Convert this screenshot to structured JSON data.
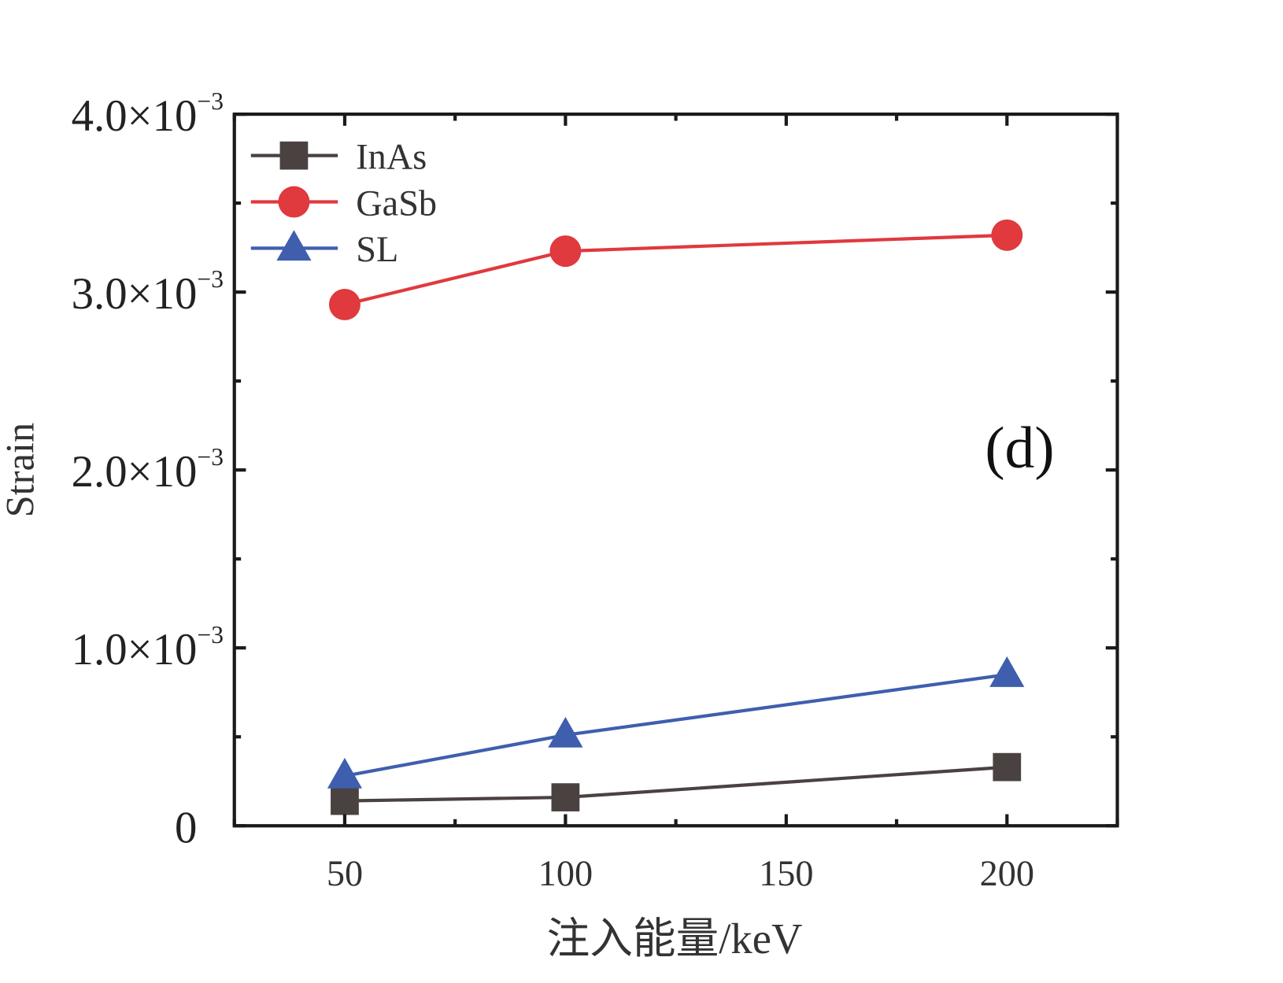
{
  "chart_data": {
    "type": "line",
    "title": "",
    "panel_label": "(d)",
    "xlabel": "注入能量/keV",
    "ylabel": "Strain",
    "xlim": [
      25,
      225
    ],
    "ylim": [
      0,
      0.004
    ],
    "x_ticks": [
      50,
      100,
      150,
      200
    ],
    "x_tick_labels": [
      "50",
      "100",
      "150",
      "200"
    ],
    "y_ticks": [
      0,
      0.001,
      0.002,
      0.003,
      0.004
    ],
    "y_tick_labels": [
      {
        "mantissa": "0",
        "exp": ""
      },
      {
        "mantissa": "1.0×10",
        "exp": "−3"
      },
      {
        "mantissa": "2.0×10",
        "exp": "−3"
      },
      {
        "mantissa": "3.0×10",
        "exp": "−3"
      },
      {
        "mantissa": "4.0×10",
        "exp": "−3"
      }
    ],
    "grid": false,
    "legend_position": "top-left",
    "x": [
      50,
      100,
      200
    ],
    "series": [
      {
        "name": "InAs",
        "color": "#4a4241",
        "marker": "square",
        "values": [
          0.00014,
          0.00016,
          0.00033
        ]
      },
      {
        "name": "GaSb",
        "color": "#e0393e",
        "marker": "circle",
        "values": [
          0.00293,
          0.00323,
          0.00332
        ]
      },
      {
        "name": "SL",
        "color": "#3f5fae",
        "marker": "triangle",
        "values": [
          0.00028,
          0.00051,
          0.00085
        ]
      }
    ]
  }
}
